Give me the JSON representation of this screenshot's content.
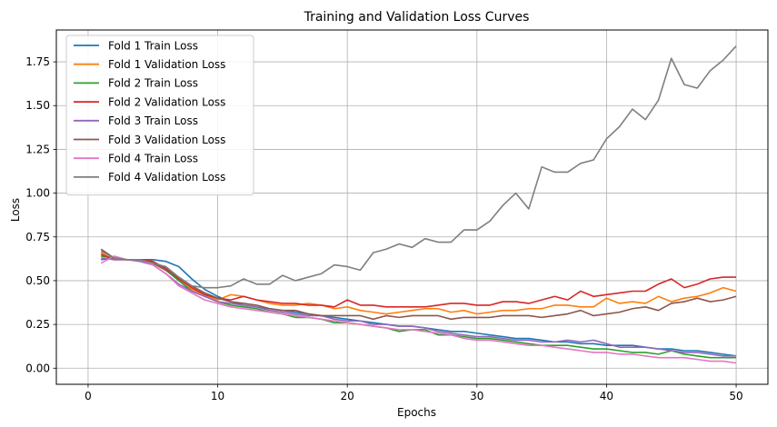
{
  "chart_data": {
    "type": "line",
    "title": "Training and Validation Loss Curves",
    "xlabel": "Epochs",
    "ylabel": "Loss",
    "xlim": [
      -2.45,
      52.45
    ],
    "ylim": [
      -0.092,
      1.932
    ],
    "xticks": [
      0,
      10,
      20,
      30,
      40,
      50
    ],
    "yticks": [
      0.0,
      0.25,
      0.5,
      0.75,
      1.0,
      1.25,
      1.5,
      1.75
    ],
    "ytick_labels": [
      "0.00",
      "0.25",
      "0.50",
      "0.75",
      "1.00",
      "1.25",
      "1.50",
      "1.75"
    ],
    "grid": true,
    "legend_position": "upper-left",
    "x": [
      1,
      2,
      3,
      4,
      5,
      6,
      7,
      8,
      9,
      10,
      11,
      12,
      13,
      14,
      15,
      16,
      17,
      18,
      19,
      20,
      21,
      22,
      23,
      24,
      25,
      26,
      27,
      28,
      29,
      30,
      31,
      32,
      33,
      34,
      35,
      36,
      37,
      38,
      39,
      40,
      41,
      42,
      43,
      44,
      45,
      46,
      47,
      48,
      49,
      50
    ],
    "series": [
      {
        "name": "Fold 1 Train Loss",
        "color": "#1f77b4",
        "values": [
          0.62,
          0.63,
          0.62,
          0.62,
          0.62,
          0.61,
          0.58,
          0.51,
          0.45,
          0.41,
          0.38,
          0.36,
          0.35,
          0.34,
          0.33,
          0.32,
          0.31,
          0.3,
          0.29,
          0.28,
          0.27,
          0.26,
          0.25,
          0.24,
          0.24,
          0.23,
          0.22,
          0.21,
          0.21,
          0.2,
          0.19,
          0.18,
          0.17,
          0.17,
          0.16,
          0.15,
          0.15,
          0.14,
          0.14,
          0.13,
          0.13,
          0.13,
          0.12,
          0.11,
          0.11,
          0.1,
          0.1,
          0.09,
          0.08,
          0.07
        ]
      },
      {
        "name": "Fold 1 Validation Loss",
        "color": "#ff7f0e",
        "values": [
          0.66,
          0.62,
          0.62,
          0.62,
          0.61,
          0.56,
          0.5,
          0.45,
          0.42,
          0.39,
          0.42,
          0.41,
          0.39,
          0.37,
          0.36,
          0.36,
          0.37,
          0.36,
          0.34,
          0.35,
          0.33,
          0.32,
          0.31,
          0.32,
          0.33,
          0.34,
          0.34,
          0.32,
          0.33,
          0.31,
          0.32,
          0.33,
          0.33,
          0.34,
          0.34,
          0.36,
          0.36,
          0.35,
          0.35,
          0.4,
          0.37,
          0.38,
          0.37,
          0.41,
          0.38,
          0.4,
          0.41,
          0.43,
          0.46,
          0.44
        ]
      },
      {
        "name": "Fold 2 Train Loss",
        "color": "#2ca02c",
        "values": [
          0.64,
          0.63,
          0.62,
          0.62,
          0.6,
          0.56,
          0.5,
          0.44,
          0.41,
          0.38,
          0.36,
          0.35,
          0.34,
          0.32,
          0.31,
          0.29,
          0.29,
          0.28,
          0.26,
          0.26,
          0.25,
          0.24,
          0.23,
          0.21,
          0.22,
          0.22,
          0.19,
          0.19,
          0.18,
          0.17,
          0.17,
          0.16,
          0.15,
          0.14,
          0.13,
          0.13,
          0.13,
          0.12,
          0.11,
          0.11,
          0.1,
          0.09,
          0.09,
          0.08,
          0.1,
          0.08,
          0.07,
          0.06,
          0.06,
          0.06
        ]
      },
      {
        "name": "Fold 2 Validation Loss",
        "color": "#d62728",
        "values": [
          0.65,
          0.62,
          0.62,
          0.62,
          0.61,
          0.57,
          0.51,
          0.46,
          0.42,
          0.4,
          0.39,
          0.41,
          0.39,
          0.38,
          0.37,
          0.37,
          0.36,
          0.36,
          0.35,
          0.39,
          0.36,
          0.36,
          0.35,
          0.35,
          0.35,
          0.35,
          0.36,
          0.37,
          0.37,
          0.36,
          0.36,
          0.38,
          0.38,
          0.37,
          0.39,
          0.41,
          0.39,
          0.44,
          0.41,
          0.42,
          0.43,
          0.44,
          0.44,
          0.48,
          0.51,
          0.46,
          0.48,
          0.51,
          0.52,
          0.52
        ]
      },
      {
        "name": "Fold 3 Train Loss",
        "color": "#9467bd",
        "values": [
          0.63,
          0.62,
          0.62,
          0.61,
          0.59,
          0.54,
          0.48,
          0.44,
          0.41,
          0.38,
          0.37,
          0.36,
          0.35,
          0.33,
          0.32,
          0.31,
          0.3,
          0.3,
          0.28,
          0.27,
          0.27,
          0.25,
          0.25,
          0.24,
          0.24,
          0.23,
          0.21,
          0.2,
          0.19,
          0.18,
          0.18,
          0.17,
          0.16,
          0.16,
          0.15,
          0.15,
          0.16,
          0.15,
          0.16,
          0.14,
          0.12,
          0.12,
          0.12,
          0.11,
          0.1,
          0.09,
          0.09,
          0.08,
          0.07,
          0.07
        ]
      },
      {
        "name": "Fold 3 Validation Loss",
        "color": "#8c564b",
        "values": [
          0.68,
          0.63,
          0.62,
          0.62,
          0.6,
          0.56,
          0.52,
          0.47,
          0.43,
          0.4,
          0.38,
          0.37,
          0.36,
          0.34,
          0.33,
          0.33,
          0.31,
          0.3,
          0.3,
          0.3,
          0.3,
          0.28,
          0.3,
          0.29,
          0.3,
          0.3,
          0.3,
          0.28,
          0.29,
          0.29,
          0.29,
          0.3,
          0.3,
          0.3,
          0.29,
          0.3,
          0.31,
          0.33,
          0.3,
          0.31,
          0.32,
          0.34,
          0.35,
          0.33,
          0.37,
          0.38,
          0.4,
          0.38,
          0.39,
          0.41
        ]
      },
      {
        "name": "Fold 4 Train Loss",
        "color": "#e377c2",
        "values": [
          0.6,
          0.64,
          0.62,
          0.62,
          0.59,
          0.54,
          0.47,
          0.43,
          0.39,
          0.37,
          0.35,
          0.34,
          0.33,
          0.32,
          0.31,
          0.3,
          0.29,
          0.28,
          0.27,
          0.26,
          0.25,
          0.24,
          0.23,
          0.22,
          0.22,
          0.21,
          0.2,
          0.19,
          0.17,
          0.16,
          0.16,
          0.15,
          0.14,
          0.13,
          0.13,
          0.12,
          0.11,
          0.1,
          0.09,
          0.09,
          0.08,
          0.08,
          0.07,
          0.06,
          0.06,
          0.06,
          0.05,
          0.04,
          0.04,
          0.03
        ]
      },
      {
        "name": "Fold 4 Validation Loss",
        "color": "#7f7f7f",
        "values": [
          0.67,
          0.63,
          0.62,
          0.62,
          0.6,
          0.58,
          0.52,
          0.47,
          0.46,
          0.46,
          0.47,
          0.51,
          0.48,
          0.48,
          0.53,
          0.5,
          0.52,
          0.54,
          0.59,
          0.58,
          0.56,
          0.66,
          0.68,
          0.71,
          0.69,
          0.74,
          0.72,
          0.72,
          0.79,
          0.79,
          0.84,
          0.93,
          1.0,
          0.91,
          1.15,
          1.12,
          1.12,
          1.17,
          1.19,
          1.31,
          1.38,
          1.48,
          1.42,
          1.53,
          1.77,
          1.62,
          1.6,
          1.7,
          1.76,
          1.84
        ]
      }
    ]
  }
}
